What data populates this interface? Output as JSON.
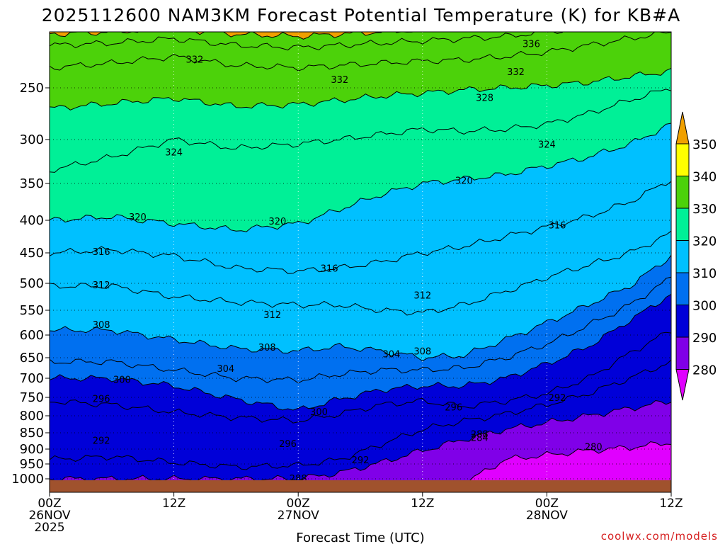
{
  "chart_data": {
    "type": "filled-contour",
    "title": "2025112600 NAM3KM Forecast Potential Temperature (K) for KB#A",
    "xlabel": "Forecast Time (UTC)",
    "ylabel": "",
    "credit": "coolwx.com/models",
    "x_range_hours": [
      0,
      60
    ],
    "x_ticks": [
      {
        "hour": 0,
        "line1": "00Z",
        "line2": "26NOV",
        "line3": "2025"
      },
      {
        "hour": 12,
        "line1": "12Z",
        "line2": "",
        "line3": ""
      },
      {
        "hour": 24,
        "line1": "00Z",
        "line2": "27NOV",
        "line3": ""
      },
      {
        "hour": 36,
        "line1": "12Z",
        "line2": "",
        "line3": ""
      },
      {
        "hour": 48,
        "line1": "00Z",
        "line2": "28NOV",
        "line3": ""
      },
      {
        "hour": 60,
        "line1": "12Z",
        "line2": "",
        "line3": ""
      }
    ],
    "y_label_values": [
      250,
      300,
      350,
      400,
      450,
      500,
      550,
      600,
      650,
      700,
      750,
      800,
      850,
      900,
      950,
      1000
    ],
    "y_ticks": [
      "250",
      "300",
      "350",
      "400",
      "450",
      "500",
      "550",
      "600",
      "650",
      "700",
      "750",
      "800",
      "850",
      "900",
      "950",
      "1000"
    ],
    "y_range_hpa": [
      200,
      1025
    ],
    "colorbar": {
      "labels": [
        "350",
        "340",
        "330",
        "320",
        "310",
        "300",
        "290",
        "280"
      ],
      "levels": [
        350,
        340,
        330,
        320,
        310,
        300,
        290,
        280
      ],
      "colors": [
        "#f0a000",
        "#ffff00",
        "#4cd20a",
        "#00f097",
        "#00c0ff",
        "#0070f0",
        "#0000d8",
        "#8000e8",
        "#e000ff"
      ]
    },
    "contour_interval": 4,
    "series": [
      {
        "name": "280",
        "hours": [
          0,
          6,
          12,
          18,
          24,
          28,
          32,
          36,
          40,
          44,
          48,
          52,
          56,
          60
        ],
        "pressure": [
          1035,
          1035,
          1035,
          1035,
          1035,
          1035,
          1035,
          1035,
          1015,
          935,
          920,
          905,
          895,
          880
        ]
      },
      {
        "name": "288",
        "hours": [
          0,
          6,
          12,
          18,
          24,
          28,
          32,
          36,
          40,
          44,
          48,
          52,
          56,
          60
        ],
        "pressure": [
          1000,
          1000,
          1000,
          1000,
          1000,
          980,
          945,
          905,
          870,
          840,
          820,
          800,
          780,
          760
        ]
      },
      {
        "name": "292",
        "hours": [
          0,
          6,
          12,
          18,
          24,
          28,
          32,
          36,
          40,
          44,
          48,
          52,
          56,
          60
        ],
        "pressure": [
          935,
          925,
          945,
          960,
          955,
          935,
          885,
          840,
          815,
          795,
          770,
          740,
          700,
          660
        ]
      },
      {
        "name": "296",
        "hours": [
          0,
          6,
          12,
          18,
          24,
          28,
          32,
          36,
          40,
          44,
          48,
          52,
          56,
          60
        ],
        "pressure": [
          760,
          770,
          790,
          805,
          815,
          795,
          770,
          760,
          775,
          760,
          740,
          700,
          640,
          590
        ]
      },
      {
        "name": "300",
        "hours": [
          0,
          6,
          12,
          18,
          24,
          28,
          32,
          36,
          40,
          44,
          48,
          52,
          56,
          60
        ],
        "pressure": [
          700,
          700,
          720,
          755,
          785,
          755,
          730,
          720,
          720,
          700,
          665,
          625,
          570,
          520
        ]
      },
      {
        "name": "304",
        "hours": [
          0,
          6,
          12,
          18,
          24,
          28,
          32,
          36,
          40,
          44,
          48,
          52,
          56,
          60
        ],
        "pressure": [
          660,
          660,
          680,
          700,
          705,
          690,
          680,
          680,
          675,
          650,
          620,
          580,
          540,
          490
        ]
      },
      {
        "name": "308",
        "hours": [
          0,
          6,
          12,
          18,
          24,
          28,
          32,
          36,
          40,
          44,
          48,
          52,
          56,
          60
        ],
        "pressure": [
          590,
          590,
          610,
          630,
          635,
          625,
          635,
          650,
          645,
          610,
          575,
          540,
          505,
          455
        ]
      },
      {
        "name": "312",
        "hours": [
          0,
          6,
          12,
          18,
          24,
          28,
          32,
          36,
          40,
          44,
          48,
          52,
          56,
          60
        ],
        "pressure": [
          505,
          505,
          525,
          535,
          540,
          540,
          550,
          555,
          540,
          515,
          490,
          470,
          450,
          420
        ]
      },
      {
        "name": "316",
        "hours": [
          0,
          6,
          12,
          18,
          24,
          28,
          32,
          36,
          40,
          44,
          48,
          52,
          56,
          60
        ],
        "pressure": [
          450,
          445,
          455,
          475,
          480,
          475,
          465,
          450,
          440,
          425,
          410,
          395,
          375,
          345
        ]
      },
      {
        "name": "320",
        "hours": [
          0,
          6,
          12,
          18,
          24,
          28,
          32,
          36,
          40,
          44,
          48,
          52,
          56,
          60
        ],
        "pressure": [
          400,
          395,
          405,
          415,
          405,
          385,
          365,
          350,
          345,
          340,
          330,
          320,
          305,
          285
        ]
      },
      {
        "name": "324",
        "hours": [
          0,
          6,
          12,
          18,
          24,
          28,
          32,
          36,
          40,
          44,
          48,
          52,
          56,
          60
        ],
        "pressure": [
          335,
          320,
          300,
          310,
          305,
          300,
          295,
          290,
          292,
          290,
          285,
          275,
          262,
          250
        ]
      },
      {
        "name": "328",
        "hours": [
          0,
          6,
          12,
          18,
          24,
          28,
          32,
          36,
          40,
          44,
          48,
          52,
          56,
          60
        ],
        "pressure": [
          270,
          265,
          260,
          268,
          266,
          262,
          258,
          255,
          252,
          250,
          248,
          245,
          240,
          235
        ]
      },
      {
        "name": "332",
        "hours": [
          0,
          6,
          12,
          18,
          24,
          28,
          32,
          36,
          40,
          44,
          48,
          52,
          56,
          60
        ],
        "pressure": [
          232,
          228,
          222,
          230,
          232,
          230,
          228,
          226,
          225,
          222,
          218,
          212,
          206,
          200
        ]
      },
      {
        "name": "336",
        "hours": [
          0,
          6,
          12,
          18,
          24,
          28,
          32,
          36,
          40,
          44,
          48,
          52,
          56,
          60
        ],
        "pressure": [
          212,
          210,
          206,
          212,
          214,
          212,
          210,
          208,
          206,
          204,
          200,
          196,
          190,
          185
        ]
      },
      {
        "name": "340",
        "hours": [
          0,
          6,
          12,
          18,
          24,
          28,
          32,
          36,
          40,
          44,
          48,
          52,
          56,
          60
        ],
        "pressure": [
          202,
          200,
          197,
          202,
          204,
          202,
          200,
          198,
          197,
          196,
          194,
          190,
          186,
          180
        ]
      }
    ],
    "contour_labels": [
      {
        "text": "336",
        "hour": 46.5,
        "pressure": 211
      },
      {
        "text": "332",
        "hour": 14,
        "pressure": 225
      },
      {
        "text": "332",
        "hour": 28,
        "pressure": 243
      },
      {
        "text": "332",
        "hour": 45,
        "pressure": 236
      },
      {
        "text": "328",
        "hour": 42,
        "pressure": 260
      },
      {
        "text": "324",
        "hour": 12,
        "pressure": 315
      },
      {
        "text": "324",
        "hour": 48,
        "pressure": 306
      },
      {
        "text": "320",
        "hour": 8.5,
        "pressure": 396
      },
      {
        "text": "320",
        "hour": 22,
        "pressure": 402
      },
      {
        "text": "320",
        "hour": 40,
        "pressure": 347
      },
      {
        "text": "316",
        "hour": 5,
        "pressure": 449
      },
      {
        "text": "316",
        "hour": 27,
        "pressure": 476
      },
      {
        "text": "316",
        "hour": 49,
        "pressure": 408
      },
      {
        "text": "312",
        "hour": 5,
        "pressure": 504
      },
      {
        "text": "312",
        "hour": 21.5,
        "pressure": 560
      },
      {
        "text": "312",
        "hour": 36,
        "pressure": 523
      },
      {
        "text": "308",
        "hour": 5,
        "pressure": 580
      },
      {
        "text": "308",
        "hour": 21,
        "pressure": 628
      },
      {
        "text": "308",
        "hour": 36,
        "pressure": 637
      },
      {
        "text": "304",
        "hour": 17,
        "pressure": 678
      },
      {
        "text": "304",
        "hour": 33,
        "pressure": 643
      },
      {
        "text": "300",
        "hour": 7,
        "pressure": 705
      },
      {
        "text": "300",
        "hour": 26,
        "pressure": 790
      },
      {
        "text": "296",
        "hour": 5,
        "pressure": 755
      },
      {
        "text": "296",
        "hour": 23,
        "pressure": 885
      },
      {
        "text": "296",
        "hour": 39,
        "pressure": 778
      },
      {
        "text": "292",
        "hour": 5,
        "pressure": 875
      },
      {
        "text": "292",
        "hour": 30,
        "pressure": 938
      },
      {
        "text": "292",
        "hour": 49,
        "pressure": 752
      },
      {
        "text": "288",
        "hour": 41.5,
        "pressure": 855
      },
      {
        "text": "284",
        "hour": 41.5,
        "pressure": 866
      },
      {
        "text": "288",
        "hour": 24,
        "pressure": 1000
      },
      {
        "text": "280",
        "hour": 52.5,
        "pressure": 895
      }
    ]
  }
}
